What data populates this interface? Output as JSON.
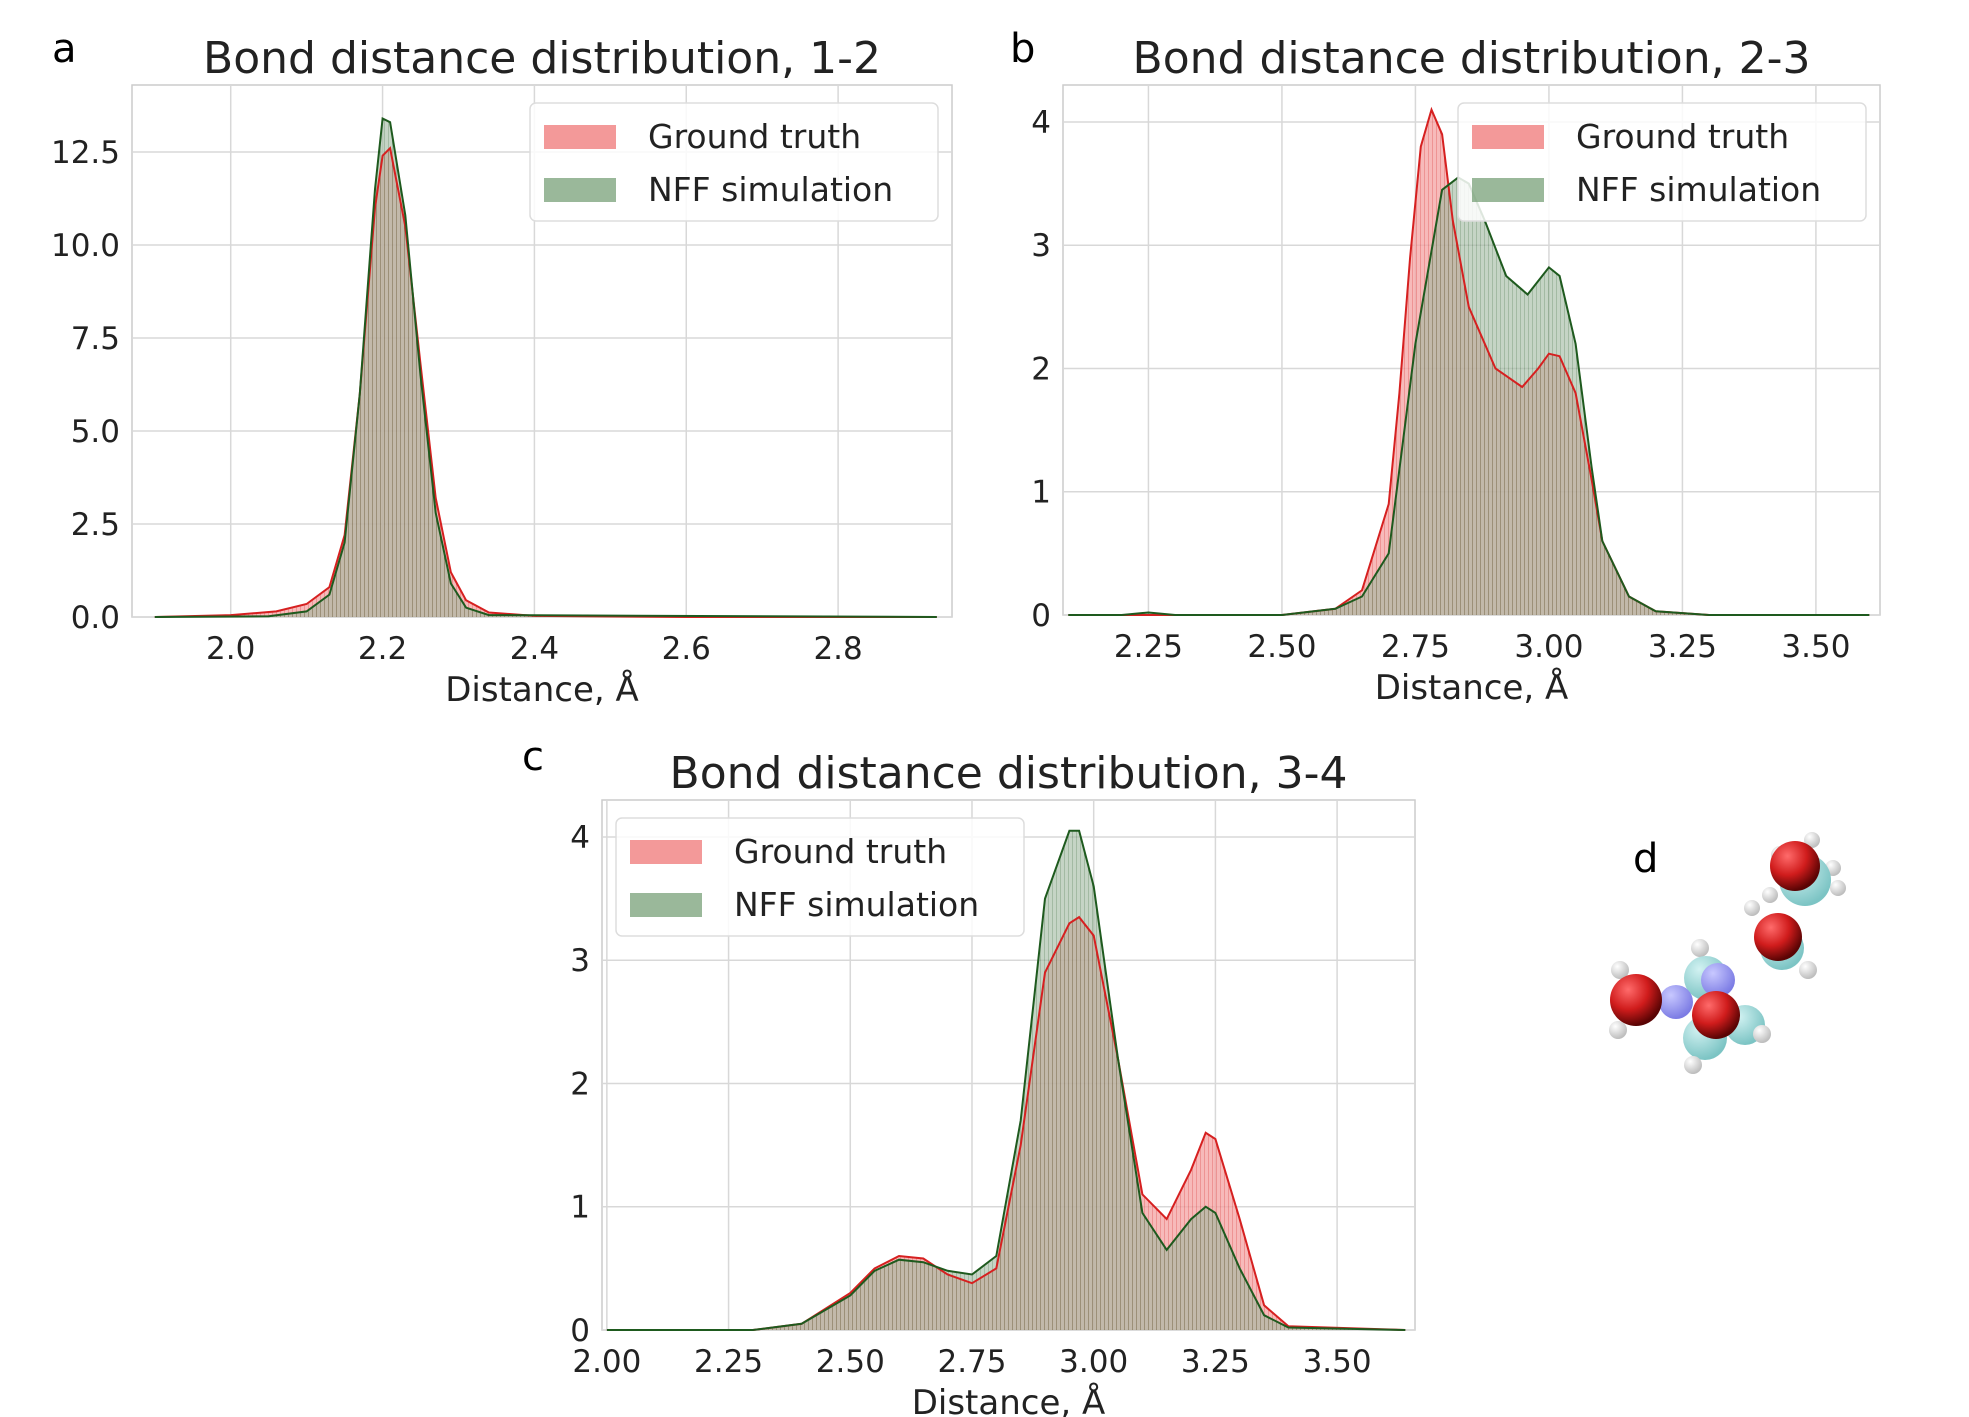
{
  "figure": {
    "panels": [
      {
        "letter": "a"
      },
      {
        "letter": "b"
      },
      {
        "letter": "c"
      },
      {
        "letter": "d"
      }
    ]
  },
  "colors": {
    "ground_truth_fill": "#f08080",
    "ground_truth_line": "#d62020",
    "nff_fill": "#6f9a6f",
    "nff_line": "#1e5a1e",
    "overlap_fill": "#b39a7c",
    "grid": "#d8d8d8",
    "oxygen": "#d01c1c",
    "nitrogen": "#8c8cf0",
    "carbon": "#8fd6d6",
    "hydrogen": "#f2f2f2"
  },
  "chart_data": [
    {
      "type": "area",
      "panel": "a",
      "title": "Bond distance distribution, 1-2",
      "xlabel": "Distance, Å",
      "ylabel": "",
      "xlim": [
        1.87,
        2.95
      ],
      "ylim": [
        0,
        14.3
      ],
      "xticks": [
        2.0,
        2.2,
        2.4,
        2.6,
        2.8
      ],
      "xtick_labels": [
        "2.0",
        "2.2",
        "2.4",
        "2.6",
        "2.8"
      ],
      "yticks": [
        0,
        2.5,
        5.0,
        7.5,
        10.0,
        12.5
      ],
      "ytick_labels": [
        "0.0",
        "2.5",
        "5.0",
        "7.5",
        "10.0",
        "12.5"
      ],
      "grid": true,
      "legend": "top-right",
      "series": [
        {
          "name": "Ground truth",
          "x": [
            1.9,
            2.0,
            2.06,
            2.1,
            2.13,
            2.15,
            2.17,
            2.19,
            2.2,
            2.21,
            2.23,
            2.25,
            2.27,
            2.29,
            2.31,
            2.34,
            2.4,
            2.6,
            2.93
          ],
          "values": [
            0,
            0.05,
            0.15,
            0.35,
            0.8,
            2.2,
            6.0,
            11.0,
            12.4,
            12.6,
            10.5,
            6.8,
            3.2,
            1.2,
            0.45,
            0.12,
            0.03,
            0,
            0
          ]
        },
        {
          "name": "NFF simulation",
          "x": [
            1.9,
            2.05,
            2.1,
            2.13,
            2.15,
            2.17,
            2.19,
            2.2,
            2.21,
            2.23,
            2.25,
            2.27,
            2.29,
            2.31,
            2.34,
            2.93
          ],
          "values": [
            0,
            0.02,
            0.15,
            0.6,
            2.0,
            6.0,
            11.5,
            13.4,
            13.3,
            10.8,
            6.5,
            2.8,
            0.9,
            0.25,
            0.05,
            0
          ]
        }
      ]
    },
    {
      "type": "area",
      "panel": "b",
      "title": "Bond distance distribution, 2-3",
      "xlabel": "Distance, Å",
      "ylabel": "",
      "xlim": [
        2.09,
        3.62
      ],
      "ylim": [
        0,
        4.3
      ],
      "xticks": [
        2.25,
        2.5,
        2.75,
        3.0,
        3.25,
        3.5
      ],
      "xtick_labels": [
        "2.25",
        "2.50",
        "2.75",
        "3.00",
        "3.25",
        "3.50"
      ],
      "yticks": [
        0,
        1,
        2,
        3,
        4
      ],
      "ytick_labels": [
        "0",
        "1",
        "2",
        "3",
        "4"
      ],
      "grid": true,
      "legend": "top-right",
      "series": [
        {
          "name": "Ground truth",
          "x": [
            2.1,
            2.5,
            2.6,
            2.65,
            2.7,
            2.72,
            2.74,
            2.76,
            2.78,
            2.8,
            2.82,
            2.85,
            2.9,
            2.95,
            2.98,
            3.0,
            3.02,
            3.05,
            3.08,
            3.1,
            3.15,
            3.2,
            3.3,
            3.6
          ],
          "values": [
            0,
            0,
            0.05,
            0.2,
            0.9,
            1.8,
            2.9,
            3.8,
            4.1,
            3.9,
            3.2,
            2.5,
            2.0,
            1.85,
            2.0,
            2.12,
            2.1,
            1.8,
            1.1,
            0.6,
            0.15,
            0.03,
            0,
            0
          ]
        },
        {
          "name": "NFF simulation",
          "x": [
            2.1,
            2.2,
            2.25,
            2.3,
            2.5,
            2.6,
            2.65,
            2.7,
            2.75,
            2.8,
            2.83,
            2.85,
            2.88,
            2.92,
            2.96,
            3.0,
            3.02,
            3.05,
            3.08,
            3.1,
            3.15,
            3.2,
            3.3,
            3.6
          ],
          "values": [
            0,
            0,
            0.02,
            0,
            0,
            0.05,
            0.15,
            0.5,
            2.2,
            3.45,
            3.55,
            3.5,
            3.2,
            2.75,
            2.6,
            2.82,
            2.75,
            2.2,
            1.2,
            0.6,
            0.15,
            0.03,
            0,
            0
          ]
        }
      ]
    },
    {
      "type": "area",
      "panel": "c",
      "title": "Bond distance distribution, 3-4",
      "xlabel": "Distance, Å",
      "ylabel": "",
      "xlim": [
        1.99,
        3.66
      ],
      "ylim": [
        0,
        4.3
      ],
      "xticks": [
        2.0,
        2.25,
        2.5,
        2.75,
        3.0,
        3.25,
        3.5
      ],
      "xtick_labels": [
        "2.00",
        "2.25",
        "2.50",
        "2.75",
        "3.00",
        "3.25",
        "3.50"
      ],
      "yticks": [
        0,
        1,
        2,
        3,
        4
      ],
      "ytick_labels": [
        "0",
        "1",
        "2",
        "3",
        "4"
      ],
      "grid": true,
      "legend": "top-left",
      "series": [
        {
          "name": "Ground truth",
          "x": [
            2.0,
            2.3,
            2.4,
            2.5,
            2.55,
            2.6,
            2.65,
            2.7,
            2.75,
            2.8,
            2.85,
            2.9,
            2.95,
            2.97,
            3.0,
            3.05,
            3.1,
            3.15,
            3.2,
            3.23,
            3.25,
            3.3,
            3.35,
            3.4,
            3.64
          ],
          "values": [
            0,
            0,
            0.05,
            0.3,
            0.5,
            0.6,
            0.58,
            0.45,
            0.38,
            0.5,
            1.5,
            2.9,
            3.3,
            3.35,
            3.2,
            2.2,
            1.1,
            0.9,
            1.3,
            1.6,
            1.55,
            0.9,
            0.2,
            0.03,
            0
          ]
        },
        {
          "name": "NFF simulation",
          "x": [
            2.0,
            2.3,
            2.4,
            2.5,
            2.55,
            2.6,
            2.65,
            2.7,
            2.75,
            2.8,
            2.85,
            2.9,
            2.95,
            2.97,
            3.0,
            3.05,
            3.1,
            3.15,
            3.2,
            3.23,
            3.25,
            3.3,
            3.35,
            3.4,
            3.64
          ],
          "values": [
            0,
            0,
            0.05,
            0.28,
            0.48,
            0.57,
            0.55,
            0.48,
            0.45,
            0.6,
            1.7,
            3.5,
            4.05,
            4.05,
            3.6,
            2.2,
            0.95,
            0.65,
            0.9,
            1.0,
            0.95,
            0.5,
            0.12,
            0.02,
            0
          ]
        }
      ]
    }
  ]
}
